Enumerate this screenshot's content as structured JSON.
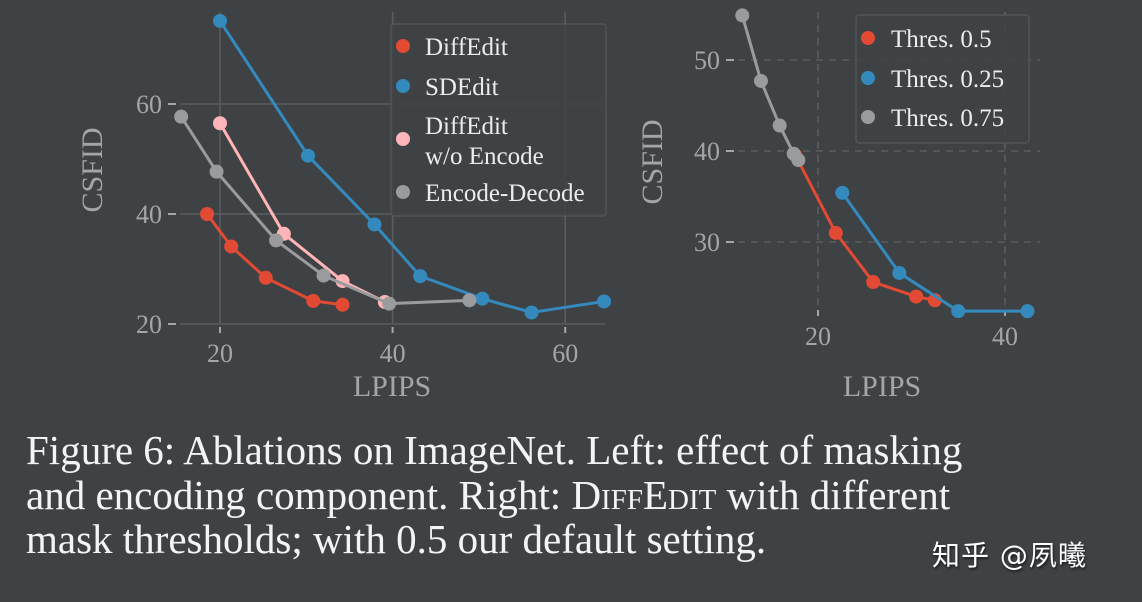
{
  "colors": {
    "background": "#3f4245",
    "grid": "#5a5d60",
    "axis_text": "#a3a6a9",
    "caption_text": "#f4f4f6",
    "red": "#e24a33",
    "blue": "#348abd",
    "pink": "#ffb5b8",
    "gray": "#9a9b9d"
  },
  "chart_data": [
    {
      "type": "line",
      "title": "",
      "xlabel": "LPIPS",
      "ylabel": "CSFID",
      "xlim": [
        13.5,
        64.5
      ],
      "ylim": [
        18.5,
        75.5
      ],
      "xticks": [
        20,
        40,
        60
      ],
      "yticks": [
        20,
        40,
        60
      ],
      "grid": "solid",
      "legend_position": "upper right",
      "series": [
        {
          "name": "DiffEdit",
          "color": "#e24a33",
          "x": [
            18.5,
            21.3,
            25.3,
            30.8,
            34.2
          ],
          "y": [
            40.0,
            34.1,
            28.4,
            24.2,
            23.5
          ]
        },
        {
          "name": "SDEdit",
          "color": "#348abd",
          "x": [
            20.0,
            30.2,
            37.9,
            43.2,
            50.4,
            56.1,
            64.5
          ],
          "y": [
            75.1,
            50.6,
            38.1,
            28.7,
            24.6,
            22.1,
            24.1
          ]
        },
        {
          "name": "DiffEdit\nw/o Encode",
          "color": "#ffb5b8",
          "x": [
            20.0,
            27.4,
            34.2,
            39.1
          ],
          "y": [
            56.5,
            36.4,
            27.8,
            24.0
          ]
        },
        {
          "name": "Encode-Decode",
          "color": "#9a9b9d",
          "x": [
            15.5,
            19.6,
            26.5,
            32.0,
            39.6,
            48.9
          ],
          "y": [
            57.7,
            47.7,
            35.2,
            28.8,
            23.7,
            24.3
          ]
        }
      ]
    },
    {
      "type": "line",
      "title": "",
      "xlabel": "LPIPS",
      "ylabel": "CSFID",
      "xlim": [
        10.5,
        43.5
      ],
      "ylim": [
        20.0,
        56.0
      ],
      "xticks": [
        20,
        40
      ],
      "yticks": [
        30,
        40,
        50
      ],
      "grid": "dashed",
      "legend_position": "upper right",
      "series": [
        {
          "name": "Thres. 0.5",
          "color": "#e24a33",
          "x": [
            17.6,
            21.9,
            25.9,
            30.5,
            32.5
          ],
          "y": [
            39.5,
            31.0,
            25.6,
            24.0,
            23.6
          ]
        },
        {
          "name": "Thres. 0.25",
          "color": "#348abd",
          "x": [
            22.6,
            28.7,
            35.0,
            42.4
          ],
          "y": [
            35.4,
            26.6,
            22.4,
            22.4
          ]
        },
        {
          "name": "Thres. 0.75",
          "color": "#9a9b9d",
          "x": [
            11.9,
            13.9,
            15.9,
            17.4,
            17.9
          ],
          "y": [
            54.9,
            47.7,
            42.8,
            39.7,
            39.0
          ]
        }
      ]
    }
  ],
  "caption": {
    "line1": "Figure 6:  Ablations on ImageNet.  Left: effect of masking",
    "line2_pre": "and encoding component.  Right: ",
    "line2_d": "D",
    "line2_iff": "iff",
    "line2_e": "E",
    "line2_dit": "dit",
    "line2_post": " with different",
    "line3": "mask thresholds; with 0.5 our default setting."
  },
  "watermark": "知乎 @夙曦"
}
